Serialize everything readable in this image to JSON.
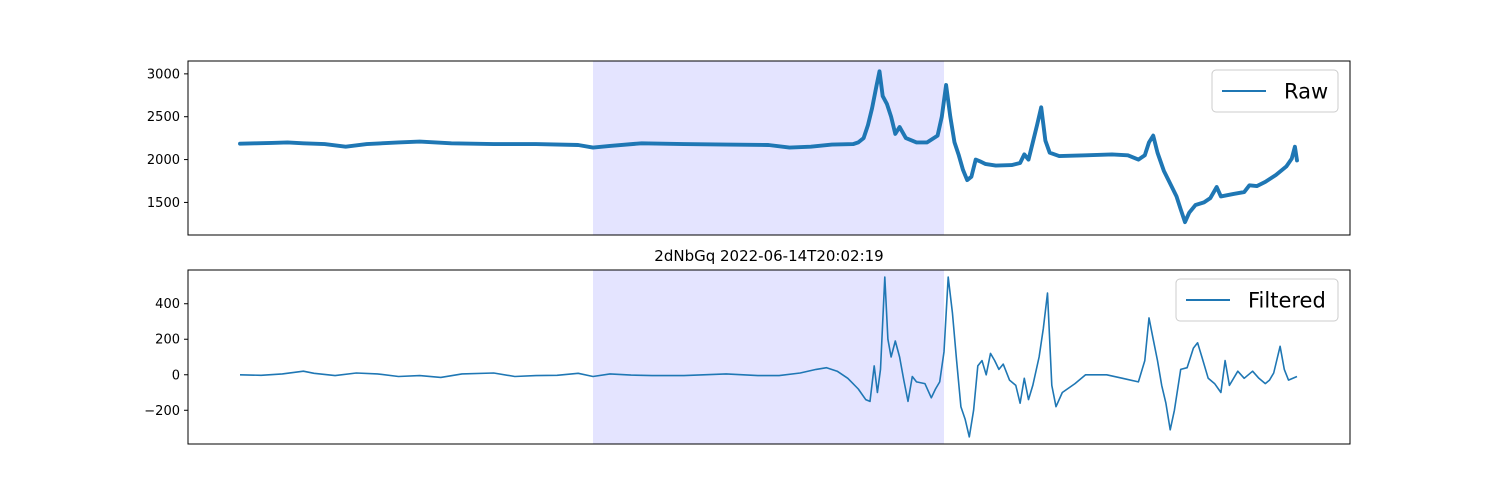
{
  "chart_data": [
    {
      "type": "line",
      "title": "",
      "xlabel": "",
      "ylabel": "",
      "ylim": [
        1120,
        3150
      ],
      "yticks": [
        1500,
        2000,
        2500,
        3000
      ],
      "x_range": [
        0,
        1000
      ],
      "highlight": [
        334,
        666
      ],
      "grid": false,
      "legend_position": "top-right",
      "series": [
        {
          "name": "Raw",
          "color": "#1f77b4",
          "band": 45,
          "points": [
            [
              0,
              2185
            ],
            [
              15,
              2190
            ],
            [
              30,
              2195
            ],
            [
              45,
              2200
            ],
            [
              60,
              2190
            ],
            [
              80,
              2180
            ],
            [
              100,
              2150
            ],
            [
              120,
              2180
            ],
            [
              150,
              2200
            ],
            [
              170,
              2210
            ],
            [
              200,
              2190
            ],
            [
              240,
              2180
            ],
            [
              280,
              2180
            ],
            [
              320,
              2170
            ],
            [
              334,
              2140
            ],
            [
              350,
              2160
            ],
            [
              380,
              2190
            ],
            [
              420,
              2180
            ],
            [
              460,
              2175
            ],
            [
              500,
              2170
            ],
            [
              520,
              2140
            ],
            [
              540,
              2150
            ],
            [
              560,
              2175
            ],
            [
              580,
              2180
            ],
            [
              585,
              2200
            ],
            [
              590,
              2250
            ],
            [
              594,
              2400
            ],
            [
              598,
              2600
            ],
            [
              602,
              2850
            ],
            [
              605,
              3030
            ],
            [
              608,
              2740
            ],
            [
              612,
              2650
            ],
            [
              616,
              2500
            ],
            [
              620,
              2300
            ],
            [
              624,
              2380
            ],
            [
              630,
              2250
            ],
            [
              640,
              2200
            ],
            [
              650,
              2200
            ],
            [
              660,
              2280
            ],
            [
              664,
              2500
            ],
            [
              668,
              2870
            ],
            [
              672,
              2500
            ],
            [
              676,
              2200
            ],
            [
              680,
              2050
            ],
            [
              684,
              1880
            ],
            [
              688,
              1760
            ],
            [
              692,
              1800
            ],
            [
              696,
              2000
            ],
            [
              700,
              1980
            ],
            [
              705,
              1950
            ],
            [
              715,
              1930
            ],
            [
              730,
              1935
            ],
            [
              738,
              1960
            ],
            [
              742,
              2060
            ],
            [
              746,
              2000
            ],
            [
              750,
              2200
            ],
            [
              754,
              2400
            ],
            [
              758,
              2610
            ],
            [
              762,
              2220
            ],
            [
              766,
              2080
            ],
            [
              775,
              2040
            ],
            [
              800,
              2050
            ],
            [
              825,
              2060
            ],
            [
              840,
              2050
            ],
            [
              850,
              2000
            ],
            [
              856,
              2050
            ],
            [
              860,
              2200
            ],
            [
              864,
              2280
            ],
            [
              868,
              2080
            ],
            [
              874,
              1870
            ],
            [
              880,
              1720
            ],
            [
              886,
              1570
            ],
            [
              890,
              1420
            ],
            [
              894,
              1270
            ],
            [
              898,
              1380
            ],
            [
              904,
              1470
            ],
            [
              912,
              1500
            ],
            [
              918,
              1550
            ],
            [
              924,
              1680
            ],
            [
              928,
              1570
            ],
            [
              940,
              1600
            ],
            [
              950,
              1620
            ],
            [
              955,
              1700
            ],
            [
              962,
              1690
            ],
            [
              970,
              1740
            ],
            [
              980,
              1820
            ],
            [
              990,
              1920
            ],
            [
              995,
              2010
            ],
            [
              998,
              2150
            ],
            [
              1000,
              1990
            ]
          ]
        }
      ]
    },
    {
      "type": "line",
      "title": "2dNbGq 2022-06-14T20:02:19",
      "xlabel": "",
      "ylabel": "",
      "ylim": [
        -390,
        590
      ],
      "yticks": [
        -200,
        0,
        200,
        400
      ],
      "x_range": [
        0,
        1000
      ],
      "highlight": [
        334,
        666
      ],
      "grid": false,
      "legend_position": "top-right",
      "series": [
        {
          "name": "Filtered",
          "color": "#1f77b4",
          "band": 0,
          "points": [
            [
              0,
              0
            ],
            [
              20,
              -3
            ],
            [
              40,
              5
            ],
            [
              60,
              20
            ],
            [
              70,
              8
            ],
            [
              90,
              -5
            ],
            [
              110,
              10
            ],
            [
              130,
              5
            ],
            [
              150,
              -10
            ],
            [
              170,
              -5
            ],
            [
              190,
              -15
            ],
            [
              210,
              5
            ],
            [
              240,
              10
            ],
            [
              260,
              -10
            ],
            [
              280,
              -5
            ],
            [
              300,
              -3
            ],
            [
              320,
              8
            ],
            [
              334,
              -10
            ],
            [
              350,
              5
            ],
            [
              370,
              -2
            ],
            [
              390,
              -5
            ],
            [
              420,
              -5
            ],
            [
              460,
              5
            ],
            [
              490,
              -5
            ],
            [
              510,
              -5
            ],
            [
              530,
              10
            ],
            [
              545,
              30
            ],
            [
              555,
              40
            ],
            [
              565,
              20
            ],
            [
              575,
              -20
            ],
            [
              585,
              -80
            ],
            [
              592,
              -140
            ],
            [
              596,
              -150
            ],
            [
              600,
              50
            ],
            [
              603,
              -100
            ],
            [
              606,
              30
            ],
            [
              610,
              550
            ],
            [
              613,
              200
            ],
            [
              616,
              100
            ],
            [
              620,
              190
            ],
            [
              624,
              100
            ],
            [
              628,
              -30
            ],
            [
              632,
              -150
            ],
            [
              636,
              -10
            ],
            [
              640,
              -40
            ],
            [
              648,
              -50
            ],
            [
              654,
              -130
            ],
            [
              658,
              -80
            ],
            [
              662,
              -40
            ],
            [
              666,
              130
            ],
            [
              670,
              550
            ],
            [
              674,
              350
            ],
            [
              678,
              80
            ],
            [
              682,
              -180
            ],
            [
              686,
              -250
            ],
            [
              690,
              -350
            ],
            [
              694,
              -200
            ],
            [
              698,
              50
            ],
            [
              702,
              80
            ],
            [
              706,
              0
            ],
            [
              710,
              120
            ],
            [
              714,
              80
            ],
            [
              718,
              30
            ],
            [
              722,
              60
            ],
            [
              728,
              -30
            ],
            [
              734,
              -60
            ],
            [
              738,
              -160
            ],
            [
              742,
              -20
            ],
            [
              746,
              -140
            ],
            [
              750,
              -60
            ],
            [
              756,
              100
            ],
            [
              760,
              260
            ],
            [
              764,
              460
            ],
            [
              768,
              -60
            ],
            [
              772,
              -180
            ],
            [
              778,
              -100
            ],
            [
              790,
              -50
            ],
            [
              800,
              0
            ],
            [
              820,
              0
            ],
            [
              835,
              -20
            ],
            [
              850,
              -40
            ],
            [
              856,
              80
            ],
            [
              860,
              320
            ],
            [
              864,
              200
            ],
            [
              868,
              80
            ],
            [
              872,
              -60
            ],
            [
              876,
              -160
            ],
            [
              880,
              -310
            ],
            [
              884,
              -200
            ],
            [
              890,
              30
            ],
            [
              896,
              40
            ],
            [
              902,
              150
            ],
            [
              906,
              180
            ],
            [
              910,
              100
            ],
            [
              916,
              -20
            ],
            [
              922,
              -50
            ],
            [
              928,
              -100
            ],
            [
              932,
              80
            ],
            [
              936,
              -60
            ],
            [
              944,
              20
            ],
            [
              950,
              -20
            ],
            [
              958,
              20
            ],
            [
              964,
              -20
            ],
            [
              970,
              -50
            ],
            [
              974,
              -30
            ],
            [
              978,
              10
            ],
            [
              984,
              160
            ],
            [
              988,
              30
            ],
            [
              992,
              -30
            ],
            [
              1000,
              -10
            ]
          ]
        }
      ]
    }
  ]
}
